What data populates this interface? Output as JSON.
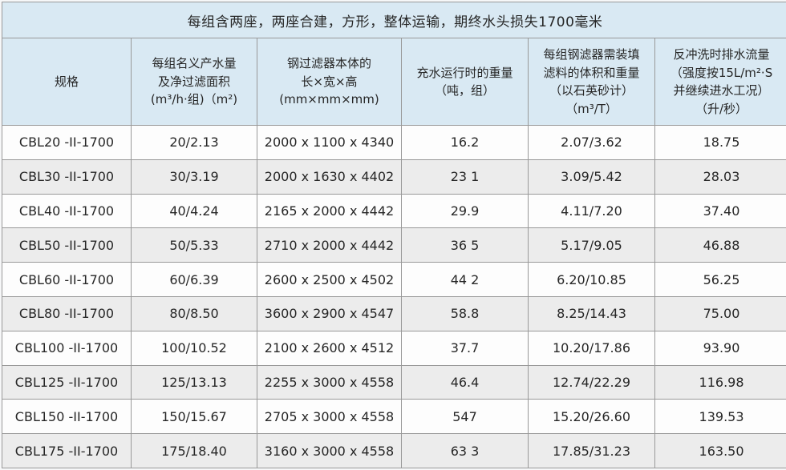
{
  "title": "每组含两座，两座合建，方形，整体运输，期终水头损失1700毫米",
  "table": {
    "headers": [
      {
        "text": "规格"
      },
      {
        "text": "每组名义产水量\n及净过滤面积\n(m³/h·组)（m²)"
      },
      {
        "text": "钢过滤器本体的\n长×宽×高\n(mm×mm×mm)"
      },
      {
        "text": "充水运行时的重量\n（吨，组）"
      },
      {
        "text": "每组钢滤器需装填\n滤料的体积和重量\n（以石英砂计）\n（m³/T）"
      },
      {
        "text": "反冲洗时排水流量\n（强度按15L/m²·S\n并继续进水工况）\n（升/秒）"
      }
    ],
    "cell_names": [
      "spec-cell",
      "capacity-area-cell",
      "dimensions-cell",
      "operating-weight-cell",
      "media-volume-weight-cell",
      "backwash-flow-cell"
    ],
    "rows": [
      {
        "cells": [
          "CBL20 -II-1700",
          "20/2.13",
          "2000 x 1100 x 4340",
          "16.2",
          "2.07/3.62",
          "18.75"
        ]
      },
      {
        "cells": [
          "CBL30 -II-1700",
          "30/3.19",
          "2000 x 1630 x 4402",
          "23 1",
          "3.09/5.42",
          "28.03"
        ]
      },
      {
        "cells": [
          "CBL40 -II-1700",
          "40/4.24",
          "2165 x 2000 x 4442",
          "29.9",
          "4.11/7.20",
          "37.40"
        ]
      },
      {
        "cells": [
          "CBL50 -II-1700",
          "50/5.33",
          "2710 x 2000 x 4442",
          "36 5",
          "5.17/9.05",
          "46.88"
        ]
      },
      {
        "cells": [
          "CBL60 -II-1700",
          "60/6.39",
          "2600 x 2500 x 4502",
          "44 2",
          "6.20/10.85",
          "56.25"
        ]
      },
      {
        "cells": [
          "CBL80 -II-1700",
          "80/8.50",
          "3600 x 2900 x 4547",
          "58.8",
          "8.25/14.43",
          "75.00"
        ]
      },
      {
        "cells": [
          "CBL100 -II-1700",
          "100/10.52",
          "2100 x 2600 x 4512",
          "37.7",
          "10.20/17.86",
          "93.90"
        ]
      },
      {
        "cells": [
          "CBL125 -II-1700",
          "125/13.13",
          "2255 x 3000 x 4558",
          "46.4",
          "12.74/22.29",
          "116.98"
        ]
      },
      {
        "cells": [
          "CBL150 -II-1700",
          "150/15.67",
          "2705 x 3000 x 4558",
          "547",
          "15.20/26.60",
          "139.53"
        ]
      },
      {
        "cells": [
          "CBL175 -II-1700",
          "175/18.40",
          "3160 x 3000 x 4558",
          "63 3",
          "17.85/31.23",
          "163.50"
        ]
      }
    ]
  },
  "colors": {
    "header_bg": "#d9e9f3",
    "row_bg": "#fdfdfd",
    "stripe_bg": "#ececec",
    "border": "#999999",
    "text": "#262626"
  }
}
